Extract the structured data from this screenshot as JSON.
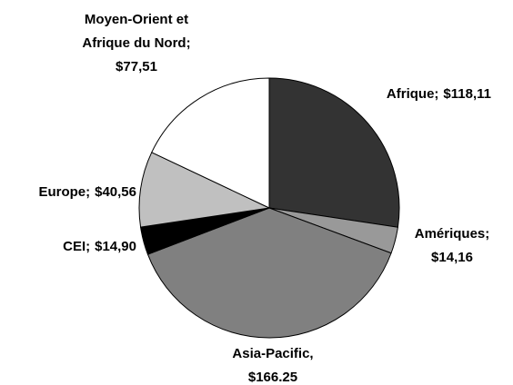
{
  "chart_data": {
    "type": "pie",
    "categories": [
      "Afrique;",
      "Amériques;",
      "Asia-Pacific,",
      "CEI;",
      "Europe;",
      "Moyen-Orient et\nAfrique du Nord;"
    ],
    "values": [
      118.11,
      14.16,
      166.25,
      14.9,
      40.56,
      77.51
    ],
    "value_labels": [
      "$118,11",
      "$14,16",
      "$166.25",
      "$14,90",
      "$40,56",
      "$77,51"
    ],
    "colors": [
      "#333333",
      "#999999",
      "#808080",
      "#000000",
      "#c0c0c0",
      "#ffffff"
    ]
  }
}
